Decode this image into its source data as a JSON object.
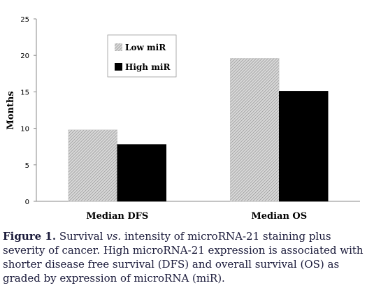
{
  "chart_data": {
    "type": "bar",
    "categories": [
      "Median DFS",
      "Median OS"
    ],
    "series": [
      {
        "name": "Low miR",
        "values": [
          9.8,
          19.6
        ],
        "pattern": "hatched-gray"
      },
      {
        "name": "High miR",
        "values": [
          7.8,
          15.1
        ],
        "pattern": "solid-black"
      }
    ],
    "title": "",
    "xlabel": "",
    "ylabel": "Months",
    "ylim": [
      0,
      25
    ],
    "yticks": [
      "0",
      "5",
      "10",
      "15",
      "20",
      "25"
    ],
    "grid": false,
    "legend_position": "top-left-inside",
    "colors": {
      "low": "#b0b0b0",
      "high": "#000000",
      "axis": "#888888"
    }
  },
  "caption": {
    "label": "Figure 1.",
    "part1": " Survival ",
    "vs": "vs.",
    "part2": " intensity of microRNA-21 staining plus severity of cancer. High microRNA-21 expression is associated with shorter disease free survival (DFS) and overall survival (OS) as graded by expression of microRNA (miR)."
  }
}
